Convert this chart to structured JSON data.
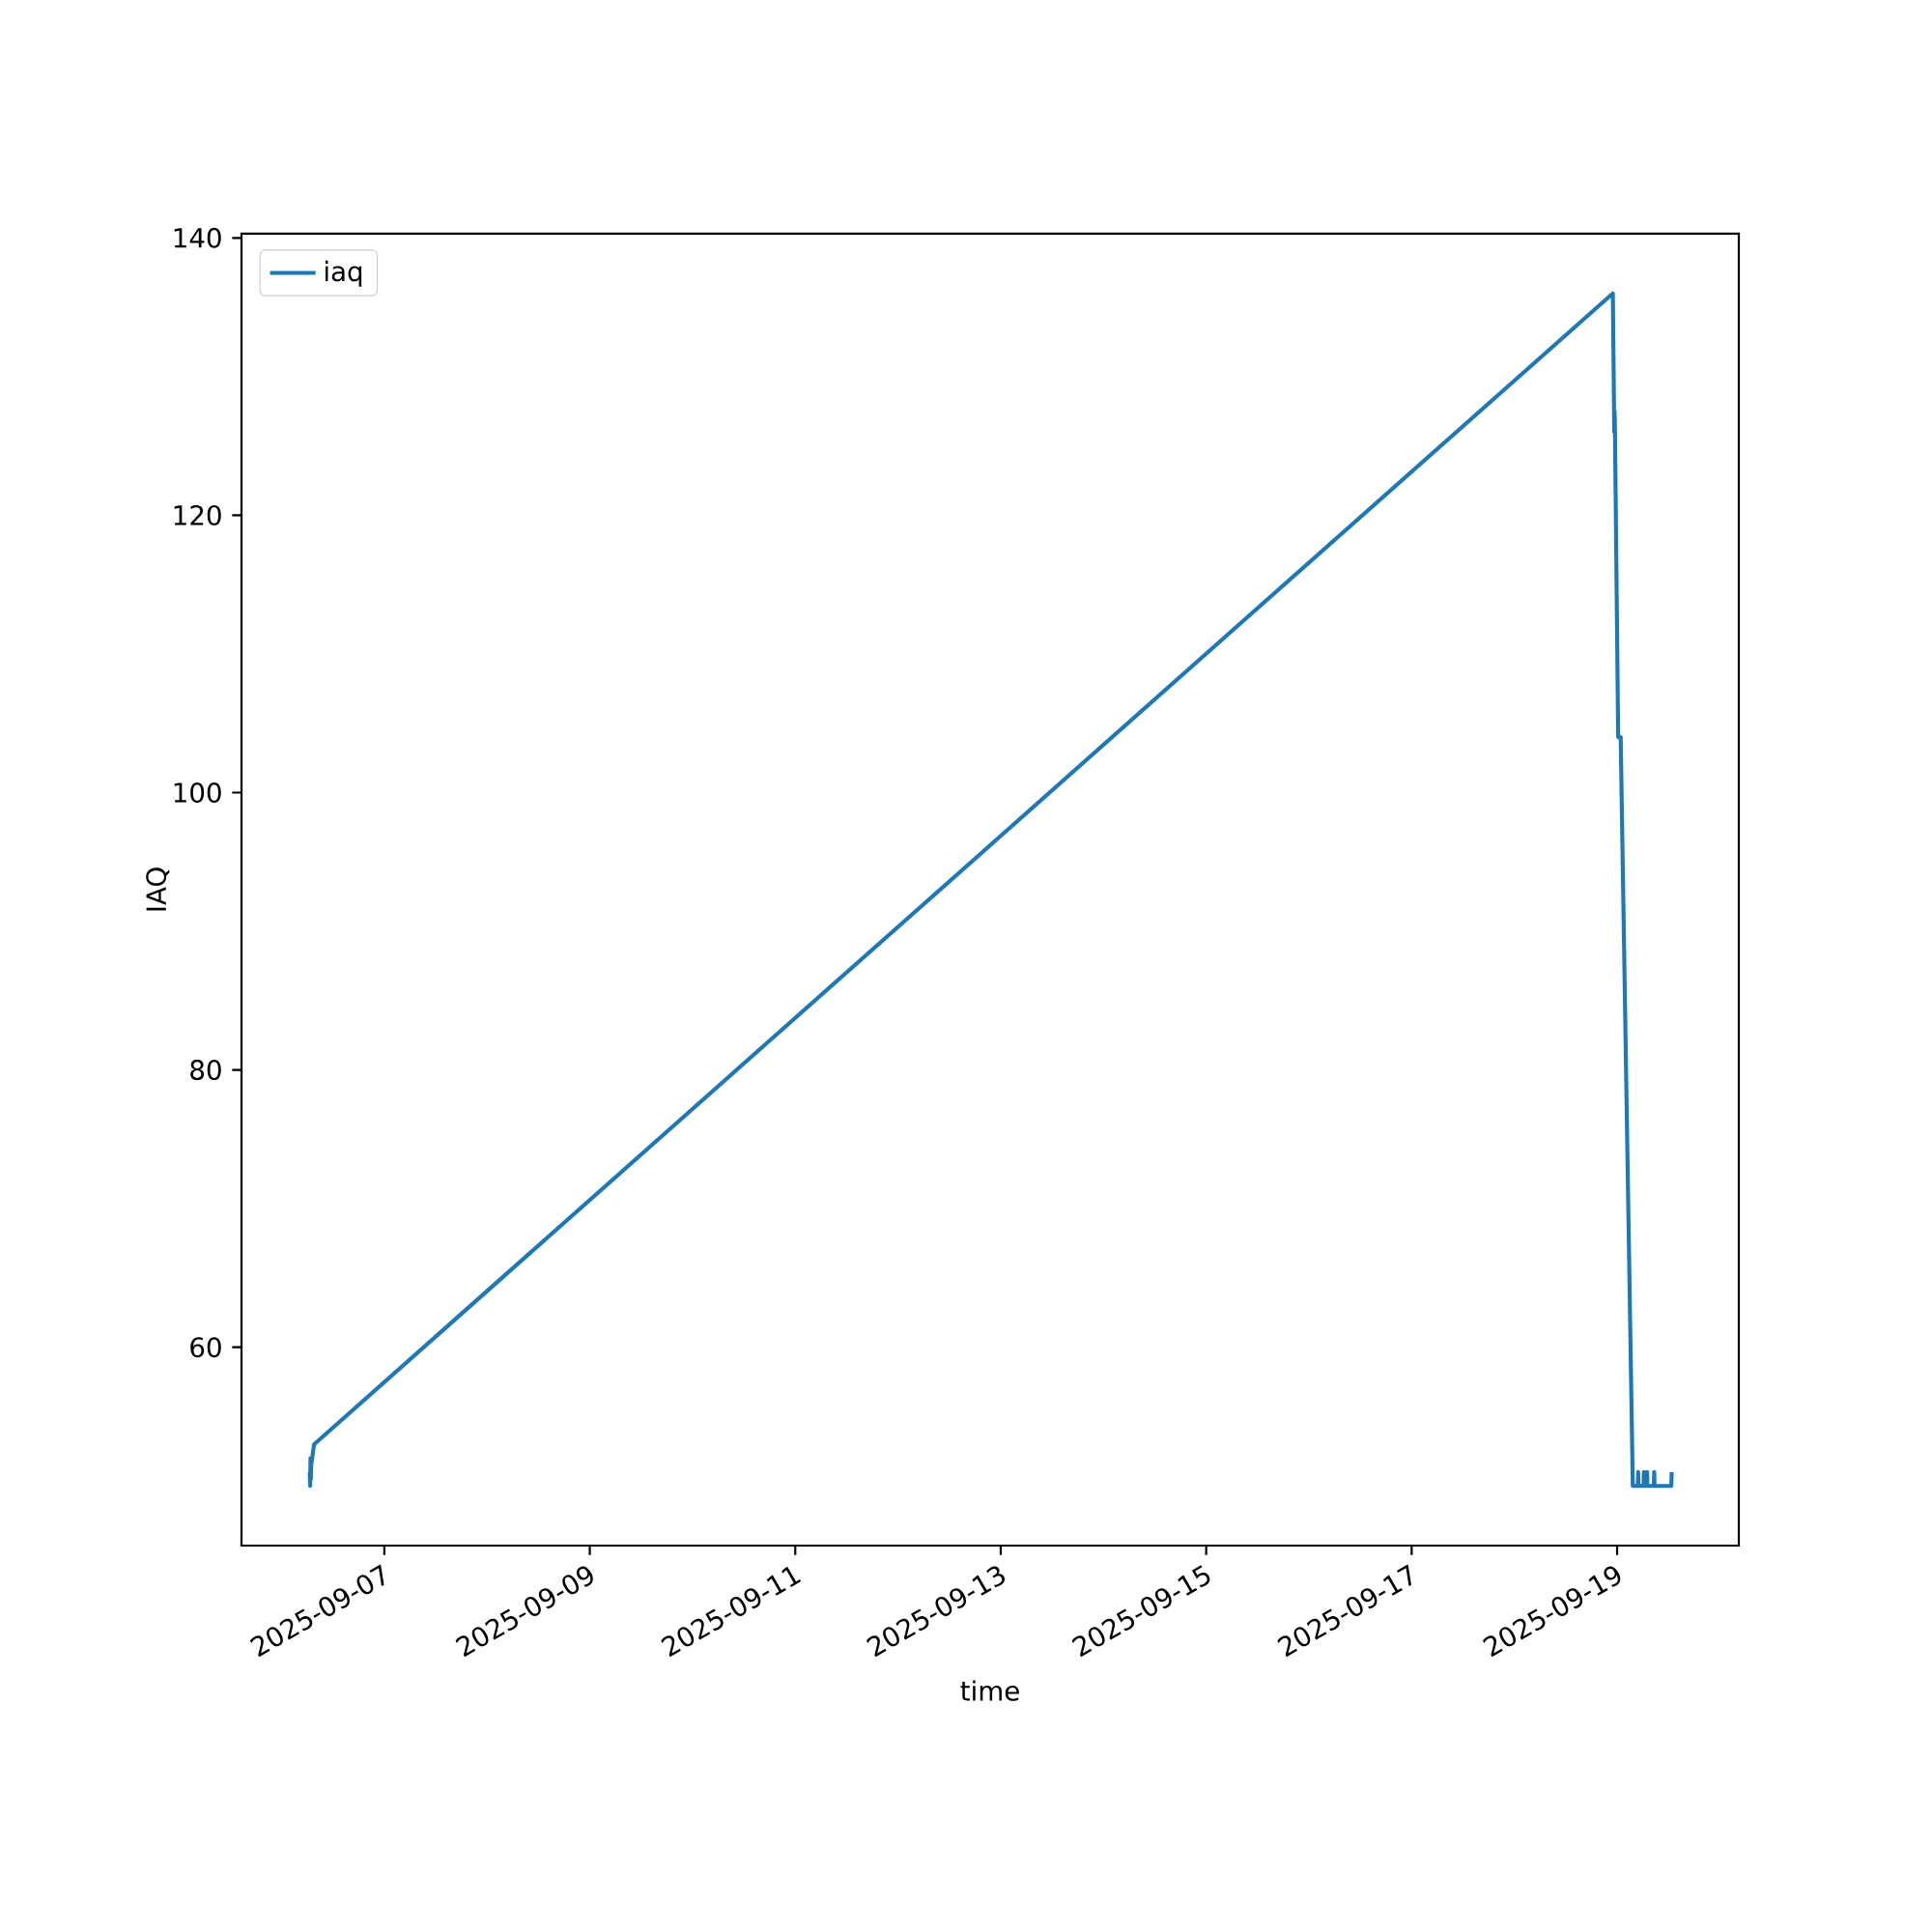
{
  "chart_data": {
    "type": "line",
    "xlabel": "time",
    "ylabel": "IAQ",
    "x": [
      "2025-09-06T06:35",
      "2025-09-06T06:40",
      "2025-09-06T06:45",
      "2025-09-06T06:50",
      "2025-09-06T06:55",
      "2025-09-06T07:35",
      "2025-09-18T23:00",
      "2025-09-18T23:20",
      "2025-09-18T23:25",
      "2025-09-18T23:30",
      "2025-09-19T00:15",
      "2025-09-19T00:50",
      "2025-09-19T03:40",
      "2025-09-19T04:50",
      "2025-09-19T04:55",
      "2025-09-19T05:00",
      "2025-09-19T06:10",
      "2025-09-19T06:15",
      "2025-09-19T06:20",
      "2025-09-19T06:55",
      "2025-09-19T07:00",
      "2025-09-19T07:05",
      "2025-09-19T08:35",
      "2025-09-19T08:40",
      "2025-09-19T08:45",
      "2025-09-19T12:40",
      "2025-09-19T12:45"
    ],
    "series": [
      {
        "name": "iaq",
        "color": "#1f77b4",
        "values": [
          51,
          50,
          52,
          50.5,
          51.5,
          53,
          136,
          126,
          127.5,
          126,
          104,
          104,
          50,
          50,
          51,
          50,
          50,
          51,
          50,
          50,
          51,
          50,
          50,
          51,
          50,
          50,
          51
        ]
      }
    ],
    "xlim": [
      "2025-09-05T14:38",
      "2025-09-20T04:26"
    ],
    "xticks": [
      "2025-09-07",
      "2025-09-09",
      "2025-09-11",
      "2025-09-13",
      "2025-09-15",
      "2025-09-17",
      "2025-09-19"
    ],
    "ylim": [
      45.7,
      140.3
    ],
    "yticks": [
      60,
      80,
      100,
      120,
      140
    ],
    "legend": "top left",
    "marker": "none",
    "line_style": "solid"
  }
}
